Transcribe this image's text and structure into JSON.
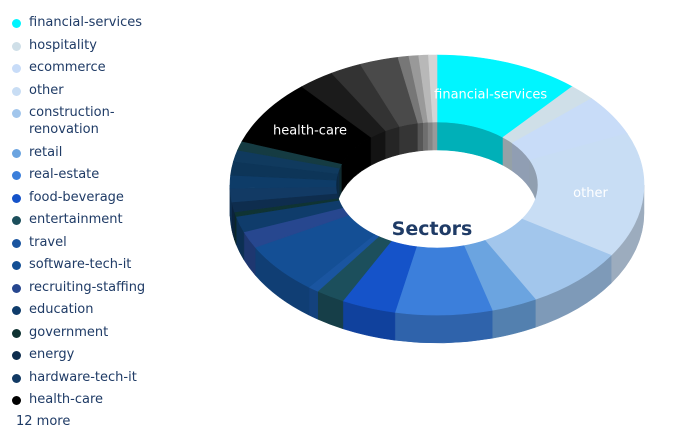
{
  "chart_data": {
    "type": "pie",
    "title": "Sectors",
    "legend_position": "left",
    "legend_more": "12 more",
    "slices": [
      {
        "label": "financial-services",
        "value": 12.0,
        "color": "#00f5ff"
      },
      {
        "label": "hospitality",
        "value": 2.2,
        "color": "#cfdfe8"
      },
      {
        "label": "ecommerce",
        "value": 5.4,
        "color": "#c8dcf8"
      },
      {
        "label": "other",
        "value": 16.5,
        "color": "#c8ddf4"
      },
      {
        "label": "construction-renovation",
        "value": 8.5,
        "color": "#a2c6ec"
      },
      {
        "label": "retail",
        "value": 3.8,
        "color": "#6ba4e0"
      },
      {
        "label": "real-estate",
        "value": 8.0,
        "color": "#3c7fdb"
      },
      {
        "label": "food-beverage",
        "value": 4.5,
        "color": "#1553c9"
      },
      {
        "label": "entertainment",
        "value": 2.4,
        "color": "#1c4f5c"
      },
      {
        "label": "travel",
        "value": 0.9,
        "color": "#1a55a0"
      },
      {
        "label": "software-tech-it",
        "value": 6.8,
        "color": "#144f95"
      },
      {
        "label": "recruiting-staffing",
        "value": 2.2,
        "color": "#27478f"
      },
      {
        "label": "education",
        "value": 2.1,
        "color": "#0f3c6b"
      },
      {
        "label": "government",
        "value": 0.6,
        "color": "#0f3333"
      },
      {
        "label": "energy",
        "value": 1.3,
        "color": "#0e2d4e"
      },
      {
        "label": "hardware-tech-it",
        "value": 1.8,
        "color": "#123a64"
      },
      {
        "label": "",
        "value": 1.7,
        "color": "#0e3c68"
      },
      {
        "label": "",
        "value": 1.8,
        "color": "#0d3558"
      },
      {
        "label": "",
        "value": 1.5,
        "color": "#103a5e"
      },
      {
        "label": "",
        "value": 1.2,
        "color": "#153b42"
      },
      {
        "label": "health-care",
        "value": 8.7,
        "color": "#000000"
      },
      {
        "label": "",
        "value": 3.0,
        "color": "#1b1b1b"
      },
      {
        "label": "",
        "value": 2.6,
        "color": "#333333"
      },
      {
        "label": "",
        "value": 3.2,
        "color": "#4a4a4a"
      },
      {
        "label": "",
        "value": 0.9,
        "color": "#777777"
      },
      {
        "label": "",
        "value": 0.8,
        "color": "#999999"
      },
      {
        "label": "",
        "value": 0.8,
        "color": "#b8b8b8"
      },
      {
        "label": "",
        "value": 0.7,
        "color": "#d4d4d4"
      }
    ],
    "slice_labels_shown": [
      "financial-services",
      "other",
      "health-care"
    ]
  }
}
